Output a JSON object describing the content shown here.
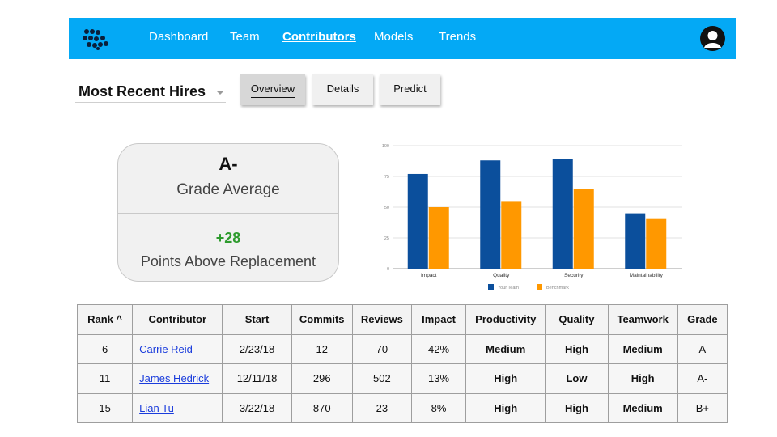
{
  "nav": {
    "items": [
      {
        "label": "Dashboard",
        "active": false
      },
      {
        "label": "Team",
        "active": false
      },
      {
        "label": "Contributors",
        "active": true
      },
      {
        "label": "Models",
        "active": false
      },
      {
        "label": "Trends",
        "active": false
      }
    ],
    "logo_icon": "logo-icon",
    "avatar_icon": "user-avatar-icon",
    "bar_color": "#04a9f5"
  },
  "view_select": {
    "label": "Most Recent Hires"
  },
  "tabs": [
    {
      "label": "Overview",
      "active": true
    },
    {
      "label": "Details",
      "active": false
    },
    {
      "label": "Predict",
      "active": false
    }
  ],
  "summary": {
    "grade_value": "A-",
    "grade_label": "Grade Average",
    "par_value": "+28",
    "par_label": "Points Above Replacement",
    "par_color": "#2e9b2e"
  },
  "chart_data": {
    "type": "bar",
    "categories": [
      "Impact",
      "Quality",
      "Security",
      "Maintainability"
    ],
    "series": [
      {
        "name": "Your Team",
        "values": [
          77,
          88,
          89,
          45
        ],
        "color": "#0b4f9c"
      },
      {
        "name": "Benchmark",
        "values": [
          50,
          55,
          65,
          41
        ],
        "color": "#ff9800"
      }
    ],
    "yticks": [
      0,
      25,
      50,
      75,
      100
    ],
    "ylim": [
      0,
      100
    ],
    "grid": true,
    "legend": "bottom",
    "title": "",
    "xlabel": "",
    "ylabel": ""
  },
  "table": {
    "headers": [
      "Rank ^",
      "Contributor",
      "Start",
      "Commits",
      "Reviews",
      "Impact",
      "Productivity",
      "Quality",
      "Teamwork",
      "Grade"
    ],
    "rows": [
      {
        "rank": "6",
        "contributor": "Carrie Reid",
        "start": "2/23/18",
        "commits": "12",
        "reviews": "70",
        "impact": "42%",
        "productivity": "Medium",
        "quality": "High",
        "teamwork": "Medium",
        "grade": "A"
      },
      {
        "rank": "11",
        "contributor": "James Hedrick",
        "start": "12/11/18",
        "commits": "296",
        "reviews": "502",
        "impact": "13%",
        "productivity": "High",
        "quality": "Low",
        "teamwork": "High",
        "grade": "A-"
      },
      {
        "rank": "15",
        "contributor": "Lian Tu",
        "start": "3/22/18",
        "commits": "870",
        "reviews": "23",
        "impact": "8%",
        "productivity": "High",
        "quality": "High",
        "teamwork": "Medium",
        "grade": "B+"
      }
    ],
    "level_colors": {
      "Medium": "#7f7cdc",
      "High": "#2e9b2e",
      "Low": "#f5a623"
    }
  }
}
